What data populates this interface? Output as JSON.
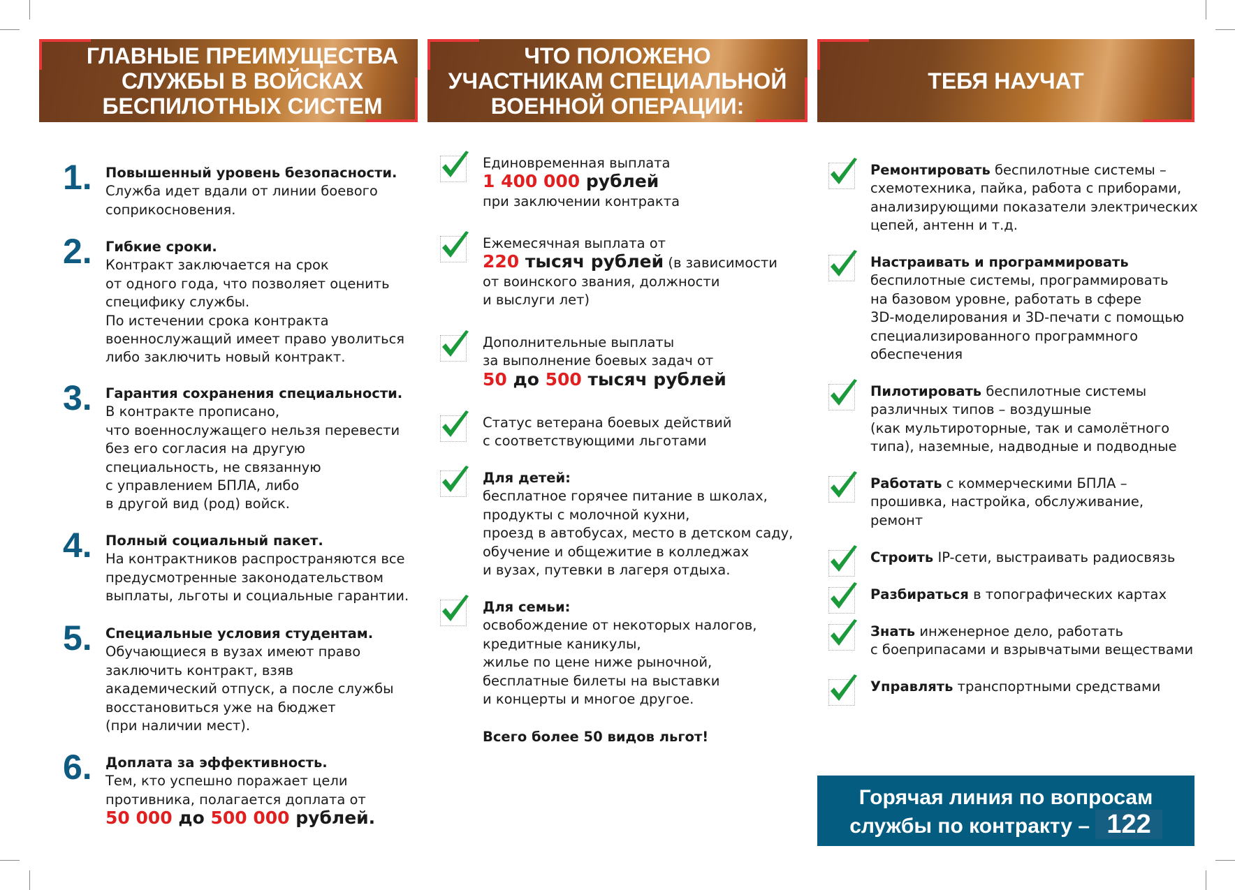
{
  "headers": [
    "ГЛАВНЫЕ ПРЕИМУЩЕСТВА\nСЛУЖБЫ В ВОЙСКАХ\nБЕСПИЛОТНЫХ СИСТЕМ",
    "ЧТО ПОЛОЖЕНО\nУЧАСТНИКАМ СПЕЦИАЛЬНОЙ\nВОЕННОЙ ОПЕРАЦИИ:",
    "ТЕБЯ НАУЧАТ"
  ],
  "colors": {
    "accent_red": "#e02020",
    "number_blue": "#0f5a80",
    "hotline_bg": "#045d80",
    "check_green": "#1a9a3a"
  },
  "advantages": [
    {
      "num": "1.",
      "runs": [
        {
          "t": "Повышенный уровень безопасности.\n",
          "s": "b"
        },
        {
          "t": "Служба идет вдали от линии боевого\nсоприкосновения."
        }
      ]
    },
    {
      "num": "2.",
      "runs": [
        {
          "t": "Гибкие сроки.\n",
          "s": "b"
        },
        {
          "t": "Контракт заключается на срок\nот одного года, что позволяет оценить\nспецифику службы.\nПо истечении срока контракта\nвоеннослужащий имеет право уволиться\nлибо заключить новый контракт."
        }
      ]
    },
    {
      "num": "3.",
      "runs": [
        {
          "t": "Гарантия сохранения специальности.\n",
          "s": "b"
        },
        {
          "t": "В контракте прописано,\nчто военнослужащего нельзя перевести\nбез его согласия на другую\nспециальность, не связанную\nс управлением БПЛА, либо\nв другой вид (род) войск."
        }
      ]
    },
    {
      "num": "4.",
      "runs": [
        {
          "t": "Полный социальный пакет.\n",
          "s": "b"
        },
        {
          "t": "На контрактников распространяются все\nпредусмотренные законодательством\nвыплаты, льготы и социальные гарантии."
        }
      ]
    },
    {
      "num": "5.",
      "runs": [
        {
          "t": "Специальные условия студентам.\n",
          "s": "b"
        },
        {
          "t": "Обучающиеся в вузах имеют право\nзаключить контракт, взяв\nакадемический отпуск, а после службы\nвосстановиться уже на бюджет\n(при наличии мест)."
        }
      ]
    },
    {
      "num": "6.",
      "runs": [
        {
          "t": "Доплата за эффективность.\n",
          "s": "b"
        },
        {
          "t": "Тем, кто успешно поражает цели\nпротивника, полагается доплата от\n"
        },
        {
          "t": "50 000",
          "s": "big r"
        },
        {
          "t": " до ",
          "s": "big"
        },
        {
          "t": "500 000",
          "s": "big r"
        },
        {
          "t": " рублей.",
          "s": "big"
        }
      ]
    }
  ],
  "benefits": [
    {
      "runs": [
        {
          "t": "Единовременная выплата\n"
        },
        {
          "t": "1 400 000",
          "s": "big r"
        },
        {
          "t": " рублей\n",
          "s": "big"
        },
        {
          "t": "при заключении контракта"
        }
      ]
    },
    {
      "runs": [
        {
          "t": "Ежемесячная выплата от\n"
        },
        {
          "t": "220",
          "s": "big r"
        },
        {
          "t": " тысяч рублей",
          "s": "big"
        },
        {
          "t": " (в зависимости\nот воинского звания, должности\nи выслуги лет)"
        }
      ]
    },
    {
      "runs": [
        {
          "t": "Дополнительные выплаты\nза выполнение боевых задач от\n"
        },
        {
          "t": "50",
          "s": "big r"
        },
        {
          "t": " до ",
          "s": "big"
        },
        {
          "t": "500",
          "s": "big r"
        },
        {
          "t": " тысяч рублей",
          "s": "big"
        }
      ]
    },
    {
      "runs": [
        {
          "t": "Статус ветерана боевых действий\nс соответствующими льготами"
        }
      ]
    },
    {
      "runs": [
        {
          "t": "Для детей:\n",
          "s": "b"
        },
        {
          "t": "бесплатное горячее питание в школах,\nпродукты с молочной кухни,\nпроезд в автобусах, место в детском саду,\nобучение и общежитие в колледжах\nи вузах, путевки в лагеря отдыха."
        }
      ]
    },
    {
      "runs": [
        {
          "t": "Для семьи:\n",
          "s": "b"
        },
        {
          "t": "освобождение от некоторых налогов,\nкредитные каникулы,\nжилье по цене ниже рыночной,\nбесплатные билеты на выставки\nи концерты и многое другое."
        }
      ]
    }
  ],
  "benefits_total": "Всего более 50 видов льгот!",
  "skills": [
    {
      "runs": [
        {
          "t": "Ремонтировать",
          "s": "b"
        },
        {
          "t": " беспилотные системы –\nсхемотехника, пайка, работа с приборами,\nанализирующими показатели электрических\nцепей, антенн и т.д."
        }
      ]
    },
    {
      "runs": [
        {
          "t": "Настраивать и программировать\n",
          "s": "b"
        },
        {
          "t": "беспилотные системы, программировать\nна базовом уровне, работать в сфере\n3D-моделирования и 3D-печати с помощью\nспециализированного программного\nобеспечения"
        }
      ]
    },
    {
      "runs": [
        {
          "t": "Пилотировать",
          "s": "b"
        },
        {
          "t": " беспилотные системы\nразличных типов – воздушные\n(как мультироторные, так и самолётного\nтипа), наземные, надводные и подводные"
        }
      ]
    },
    {
      "runs": [
        {
          "t": "Работать",
          "s": "b"
        },
        {
          "t": " с коммерческими БПЛА –\nпрошивка, настройка, обслуживание,\nремонт"
        }
      ]
    },
    {
      "runs": [
        {
          "t": "Строить",
          "s": "b"
        },
        {
          "t": " IP-сети, выстраивать радиосвязь"
        }
      ]
    },
    {
      "runs": [
        {
          "t": "Разбираться",
          "s": "b"
        },
        {
          "t": " в топографических картах"
        }
      ]
    },
    {
      "runs": [
        {
          "t": "Знать",
          "s": "b"
        },
        {
          "t": " инженерное дело, работать\nс боеприпасами и взрывчатыми веществами"
        }
      ]
    },
    {
      "runs": [
        {
          "t": "Управлять",
          "s": "b"
        },
        {
          "t": " транспортными средствами"
        }
      ]
    }
  ],
  "hotline": {
    "text": "Горячая линия по вопросам\nслужбы по контракту – ",
    "number": "122"
  }
}
